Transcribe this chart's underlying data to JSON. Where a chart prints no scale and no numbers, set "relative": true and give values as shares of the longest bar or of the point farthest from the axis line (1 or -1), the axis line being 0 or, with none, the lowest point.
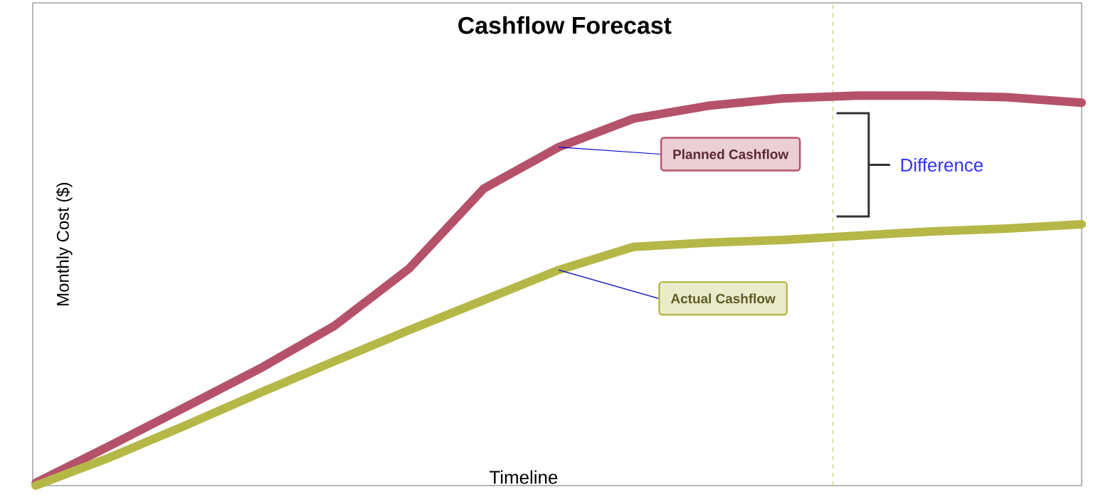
{
  "chart_data": {
    "type": "line",
    "title": "Cashflow Forecast",
    "xlabel": "Timeline",
    "ylabel": "Monthly Cost ($)",
    "relative": true,
    "categories": [
      null,
      null,
      null,
      null,
      null,
      null,
      null,
      null,
      null,
      null,
      null,
      null,
      null,
      null,
      null
    ],
    "series": [
      {
        "name": "Planned Cashflow",
        "color": "#b5526a",
        "values": [
          0.007,
          0.103,
          0.201,
          0.3,
          0.41,
          0.557,
          0.762,
          0.868,
          0.941,
          0.974,
          0.993,
          1.0,
          1.0,
          0.996,
          0.982
        ]
      },
      {
        "name": "Actual Cashflow",
        "color": "#b5b846",
        "values": [
          0.0,
          0.073,
          0.154,
          0.238,
          0.319,
          0.399,
          0.476,
          0.553,
          0.612,
          0.623,
          0.63,
          0.641,
          0.652,
          0.659,
          0.67
        ]
      }
    ],
    "annotations": [
      "Difference"
    ],
    "legend": "center",
    "marker": "none",
    "line_style": "solid"
  }
}
